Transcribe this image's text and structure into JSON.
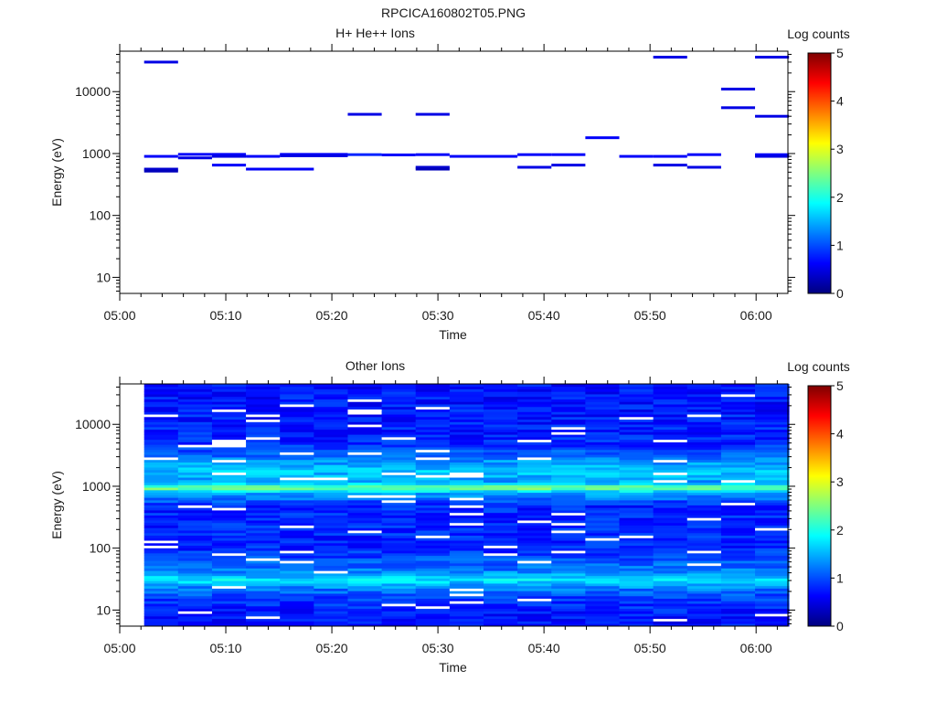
{
  "figure": {
    "title": "RPCICA160802T05.PNG"
  },
  "colors": {
    "background": "#ffffff",
    "axis": "#000000",
    "colormap": [
      "#00007f",
      "#0000ff",
      "#007fff",
      "#00ffff",
      "#7fff7f",
      "#ffff00",
      "#ff7f00",
      "#ff0000",
      "#7f0000"
    ]
  },
  "chart_data": [
    {
      "type": "heatmap",
      "panel": "top",
      "title": "H+ He++ Ions",
      "xlabel": "Time",
      "ylabel": "Energy (eV)",
      "colorbar_label": "Log counts",
      "colorbar_ticks": [
        "0",
        "1",
        "2",
        "3",
        "4",
        "5"
      ],
      "colorbar_range": [
        0,
        5
      ],
      "x_ticks": [
        "05:00",
        "05:10",
        "05:20",
        "05:30",
        "05:40",
        "05:50",
        "06:00"
      ],
      "y_ticks": [
        "10",
        "100",
        "1000",
        "10000"
      ],
      "y_scale": "log",
      "xlim": [
        "05:00",
        "06:03"
      ],
      "ylim": [
        5.5,
        45000
      ],
      "segments": [
        {
          "t0": "05:02.3",
          "t1": "05:05.5",
          "energy": 30000,
          "log_counts": 0.5
        },
        {
          "t0": "05:02.3",
          "t1": "05:05.5",
          "energy": 900,
          "log_counts": 0.6
        },
        {
          "t0": "05:02.3",
          "t1": "05:05.5",
          "energy": 560,
          "log_counts": 0.4
        },
        {
          "t0": "05:02.3",
          "t1": "05:05.5",
          "energy": 520,
          "log_counts": 0.3
        },
        {
          "t0": "05:05.5",
          "t1": "05:08.7",
          "energy": 970,
          "log_counts": 0.6
        },
        {
          "t0": "05:05.5",
          "t1": "05:08.7",
          "energy": 850,
          "log_counts": 0.5
        },
        {
          "t0": "05:08.7",
          "t1": "05:11.9",
          "energy": 970,
          "log_counts": 0.6
        },
        {
          "t0": "05:08.7",
          "t1": "05:11.9",
          "energy": 900,
          "log_counts": 0.5
        },
        {
          "t0": "05:08.7",
          "t1": "05:11.9",
          "energy": 650,
          "log_counts": 0.6
        },
        {
          "t0": "05:11.9",
          "t1": "05:15.1",
          "energy": 900,
          "log_counts": 0.6
        },
        {
          "t0": "05:11.9",
          "t1": "05:18.3",
          "energy": 560,
          "log_counts": 0.6
        },
        {
          "t0": "05:15.1",
          "t1": "05:21.5",
          "energy": 970,
          "log_counts": 0.6
        },
        {
          "t0": "05:15.1",
          "t1": "05:21.5",
          "energy": 920,
          "log_counts": 0.5
        },
        {
          "t0": "05:21.5",
          "t1": "05:24.7",
          "energy": 4300,
          "log_counts": 0.5
        },
        {
          "t0": "05:21.5",
          "t1": "05:24.7",
          "energy": 960,
          "log_counts": 0.8
        },
        {
          "t0": "05:24.7",
          "t1": "05:27.9",
          "energy": 950,
          "log_counts": 0.6
        },
        {
          "t0": "05:27.9",
          "t1": "05:31.1",
          "energy": 4300,
          "log_counts": 0.5
        },
        {
          "t0": "05:27.9",
          "t1": "05:31.1",
          "energy": 960,
          "log_counts": 0.6
        },
        {
          "t0": "05:27.9",
          "t1": "05:31.1",
          "energy": 600,
          "log_counts": 0.4
        },
        {
          "t0": "05:27.9",
          "t1": "05:31.1",
          "energy": 560,
          "log_counts": 0.3
        },
        {
          "t0": "05:31.1",
          "t1": "05:37.5",
          "energy": 900,
          "log_counts": 0.6
        },
        {
          "t0": "05:37.5",
          "t1": "05:40.7",
          "energy": 960,
          "log_counts": 0.6
        },
        {
          "t0": "05:37.5",
          "t1": "05:40.7",
          "energy": 600,
          "log_counts": 0.5
        },
        {
          "t0": "05:40.7",
          "t1": "05:43.9",
          "energy": 960,
          "log_counts": 0.6
        },
        {
          "t0": "05:40.7",
          "t1": "05:43.9",
          "energy": 650,
          "log_counts": 0.5
        },
        {
          "t0": "05:43.9",
          "t1": "05:47.1",
          "energy": 1800,
          "log_counts": 0.6
        },
        {
          "t0": "05:47.1",
          "t1": "05:50.3",
          "energy": 900,
          "log_counts": 0.6
        },
        {
          "t0": "05:50.3",
          "t1": "05:53.5",
          "energy": 36000,
          "log_counts": 0.5
        },
        {
          "t0": "05:50.3",
          "t1": "05:53.5",
          "energy": 900,
          "log_counts": 0.6
        },
        {
          "t0": "05:50.3",
          "t1": "05:53.5",
          "energy": 650,
          "log_counts": 0.5
        },
        {
          "t0": "05:53.5",
          "t1": "05:56.7",
          "energy": 960,
          "log_counts": 0.6
        },
        {
          "t0": "05:53.5",
          "t1": "05:56.7",
          "energy": 600,
          "log_counts": 0.5
        },
        {
          "t0": "05:56.7",
          "t1": "05:59.9",
          "energy": 11000,
          "log_counts": 0.5
        },
        {
          "t0": "05:56.7",
          "t1": "05:59.9",
          "energy": 5500,
          "log_counts": 0.5
        },
        {
          "t0": "05:59.9",
          "t1": "06:03.1",
          "energy": 36000,
          "log_counts": 0.5
        },
        {
          "t0": "05:59.9",
          "t1": "06:03.1",
          "energy": 4000,
          "log_counts": 0.5
        },
        {
          "t0": "05:59.9",
          "t1": "06:03.1",
          "energy": 960,
          "log_counts": 0.6
        },
        {
          "t0": "05:59.9",
          "t1": "06:03.1",
          "energy": 900,
          "log_counts": 0.5
        }
      ]
    },
    {
      "type": "heatmap",
      "panel": "bottom",
      "title": "Other Ions",
      "xlabel": "Time",
      "ylabel": "Energy (eV)",
      "colorbar_label": "Log counts",
      "colorbar_ticks": [
        "0",
        "1",
        "2",
        "3",
        "4",
        "5"
      ],
      "colorbar_range": [
        0,
        5
      ],
      "x_ticks": [
        "05:00",
        "05:10",
        "05:20",
        "05:30",
        "05:40",
        "05:50",
        "06:00"
      ],
      "y_ticks": [
        "10",
        "100",
        "1000",
        "10000"
      ],
      "y_scale": "log",
      "xlim": [
        "05:00",
        "06:03"
      ],
      "ylim": [
        5.5,
        45000
      ],
      "time_bins": [
        "05:02.3",
        "05:05.5",
        "05:08.7",
        "05:11.9",
        "05:15.1",
        "05:18.3",
        "05:21.5",
        "05:24.7",
        "05:27.9",
        "05:31.1",
        "05:34.3",
        "05:37.5",
        "05:40.7",
        "05:43.9",
        "05:47.1",
        "05:50.3",
        "05:53.5",
        "05:56.7",
        "05:59.9"
      ],
      "time_bin_end": "06:03.1",
      "energy_range": [
        5.5,
        45000
      ],
      "energy_bins": 96,
      "log_counts_profile": [
        {
          "energy": 8,
          "log_counts": 0.7
        },
        {
          "energy": 15,
          "log_counts": 0.9
        },
        {
          "energy": 22,
          "log_counts": 1.2
        },
        {
          "energy": 28,
          "log_counts": 1.6
        },
        {
          "energy": 31,
          "log_counts": 1.8
        },
        {
          "energy": 36,
          "log_counts": 1.5
        },
        {
          "energy": 45,
          "log_counts": 1.2
        },
        {
          "energy": 100,
          "log_counts": 0.8
        },
        {
          "energy": 500,
          "log_counts": 0.8
        },
        {
          "energy": 800,
          "log_counts": 1.5
        },
        {
          "energy": 950,
          "log_counts": 2.6
        },
        {
          "energy": 1150,
          "log_counts": 1.4
        },
        {
          "energy": 1800,
          "log_counts": 1.6
        },
        {
          "energy": 5000,
          "log_counts": 0.8
        },
        {
          "energy": 30000,
          "log_counts": 0.7
        }
      ],
      "zero_count_marks_color": "#ffffff"
    }
  ]
}
